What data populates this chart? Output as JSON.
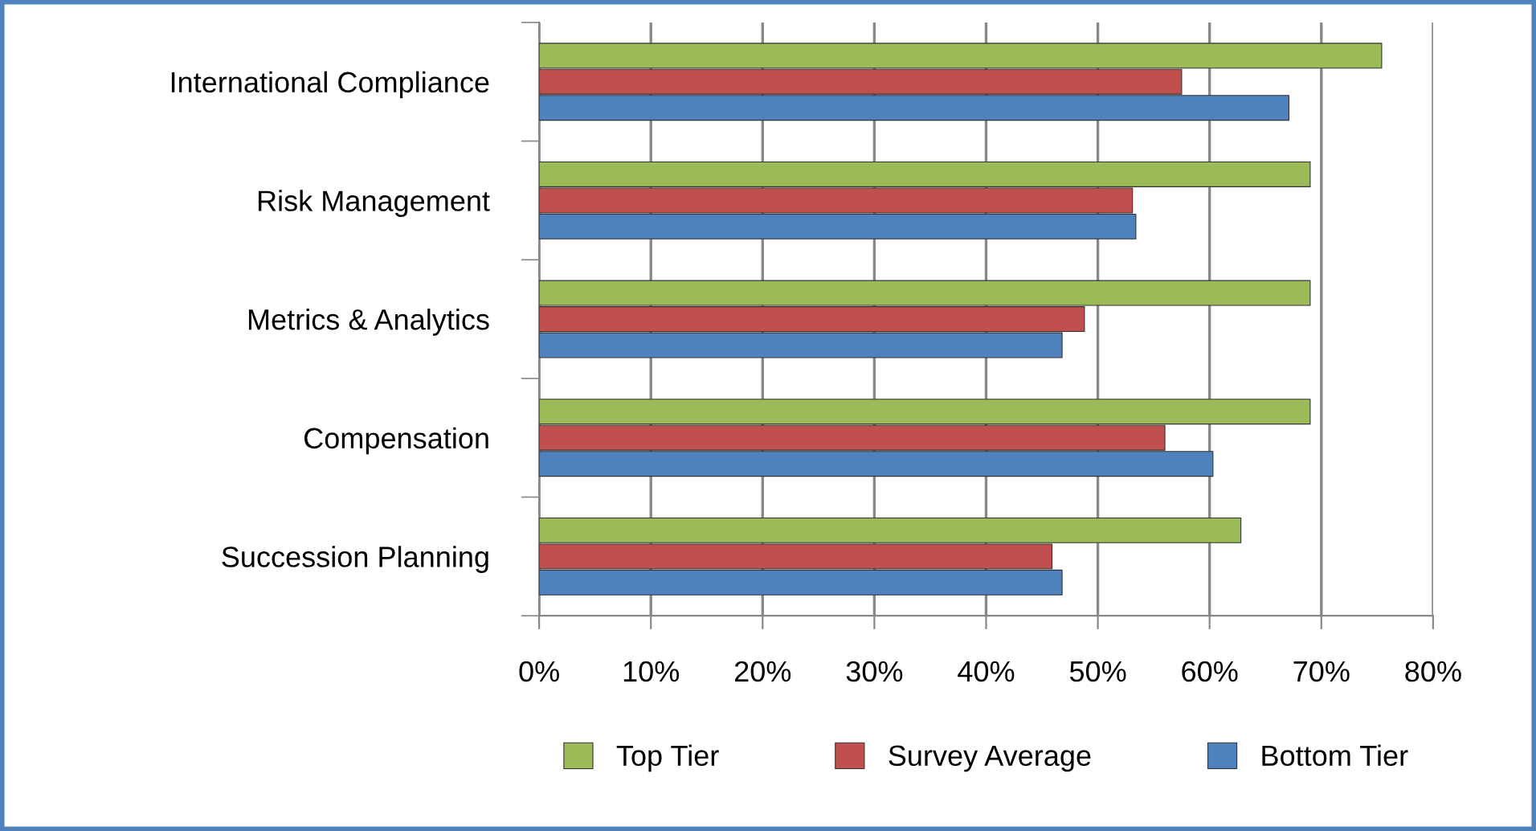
{
  "chart_data": {
    "type": "bar",
    "orientation": "horizontal",
    "categories": [
      "International Compliance",
      "Risk Management",
      "Metrics & Analytics",
      "Compensation",
      "Succession Planning"
    ],
    "series": [
      {
        "name": "Top Tier",
        "color": "#9bbb59",
        "values": [
          75.4,
          69,
          69,
          69,
          62.8
        ]
      },
      {
        "name": "Survey Average",
        "color": "#c0504d",
        "values": [
          57.5,
          53.1,
          48.8,
          56,
          45.9
        ]
      },
      {
        "name": "Bottom Tier",
        "color": "#4f81bd",
        "values": [
          67.1,
          53.4,
          46.8,
          60.3,
          46.8
        ]
      }
    ],
    "xlim": [
      0,
      80
    ],
    "xticks": [
      {
        "value": 0,
        "label": "0%"
      },
      {
        "value": 10,
        "label": "10%"
      },
      {
        "value": 20,
        "label": "20%"
      },
      {
        "value": 30,
        "label": "30%"
      },
      {
        "value": 40,
        "label": "40%"
      },
      {
        "value": 50,
        "label": "50%"
      },
      {
        "value": 60,
        "label": "60%"
      },
      {
        "value": 70,
        "label": "70%"
      },
      {
        "value": 80,
        "label": "80%"
      }
    ],
    "grid": "x",
    "legend": "bottom"
  }
}
